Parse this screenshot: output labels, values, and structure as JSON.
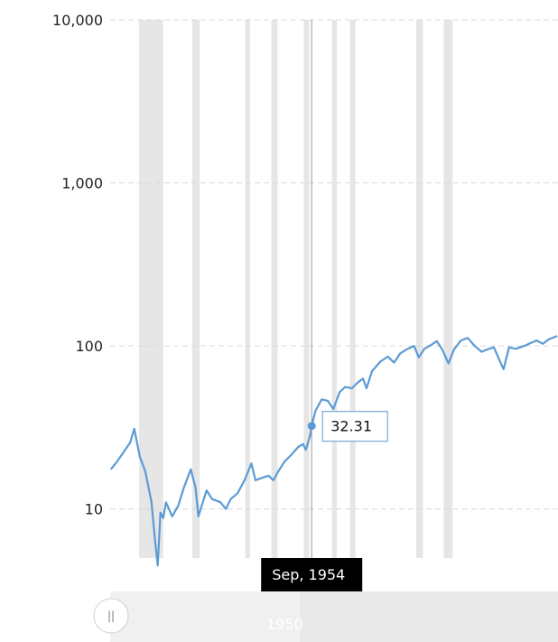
{
  "chart_data": {
    "type": "line",
    "scale": "log",
    "ylim": [
      5,
      10000
    ],
    "xlim": [
      1925.5,
      1990.5
    ],
    "y_ticks": [
      "10",
      "100",
      "1,000",
      "10,000"
    ],
    "grid": true,
    "series": [
      {
        "x": [
          1925.6,
          1926.5,
          1927.5,
          1928.4,
          1929.0,
          1929.8,
          1930.6,
          1931.5,
          1932.0,
          1932.4,
          1932.8,
          1933.2,
          1933.6,
          1934.5,
          1935.4,
          1936.2,
          1937.2,
          1937.9,
          1938.3,
          1939.5,
          1940.3,
          1941.5,
          1942.3,
          1943.0,
          1944.0,
          1945.0,
          1946.0,
          1946.6,
          1947.5,
          1948.5,
          1949.2,
          1949.9,
          1950.8,
          1951.8,
          1952.8,
          1953.5,
          1953.9,
          1954.5,
          1954.75,
          1955.3,
          1956.2,
          1957.1,
          1957.9,
          1958.8,
          1959.6,
          1960.6,
          1961.5,
          1962.2,
          1962.7,
          1963.5,
          1964.7,
          1965.8,
          1966.7,
          1967.6,
          1968.5,
          1969.6,
          1970.3,
          1971.1,
          1972.2,
          1972.9,
          1973.7,
          1974.6,
          1975.4,
          1976.4,
          1977.4,
          1978.4,
          1979.4,
          1980.2,
          1981.2,
          1982.0,
          1982.6,
          1983.4,
          1984.4,
          1985.6,
          1986.5,
          1987.4,
          1988.3,
          1989.2,
          1990.4
        ],
        "values": [
          17.5,
          19.5,
          22.5,
          25.5,
          31.0,
          21.0,
          17.0,
          11.0,
          6.5,
          4.5,
          9.5,
          8.8,
          11.0,
          9.0,
          10.5,
          13.5,
          17.5,
          13.5,
          9.0,
          13.0,
          11.5,
          11.0,
          10.0,
          11.5,
          12.5,
          15.0,
          19.0,
          15.0,
          15.5,
          16.0,
          15.0,
          17.0,
          19.5,
          21.5,
          24.0,
          25.0,
          23.0,
          28.0,
          32.31,
          40.0,
          47.0,
          46.0,
          41.0,
          52.0,
          56.0,
          55.0,
          60.0,
          63.0,
          55.0,
          70.0,
          80.0,
          86.0,
          79.0,
          90.0,
          95.0,
          100.0,
          85.0,
          96.0,
          102.0,
          107.0,
          95.0,
          78.0,
          95.0,
          108.0,
          112.0,
          100.0,
          92.0,
          95.0,
          98.0,
          82.0,
          72.0,
          98.0,
          96.0,
          100.0,
          104.0,
          108.0,
          103.0,
          110.0,
          115.0
        ]
      }
    ],
    "recession_bands": [
      [
        1929.7,
        1933.2
      ],
      [
        1937.4,
        1938.5
      ],
      [
        1945.1,
        1945.8
      ],
      [
        1948.9,
        1949.8
      ],
      [
        1953.6,
        1954.4
      ],
      [
        1957.7,
        1958.4
      ],
      [
        1960.3,
        1961.1
      ],
      [
        1969.9,
        1970.9
      ],
      [
        1973.9,
        1975.2
      ]
    ],
    "hover": {
      "x": 1954.75,
      "value": 32.31,
      "value_label": "32.31",
      "date_label": "Sep, 1954"
    },
    "navigator": {
      "label": "1950",
      "label_x": 1950
    }
  }
}
